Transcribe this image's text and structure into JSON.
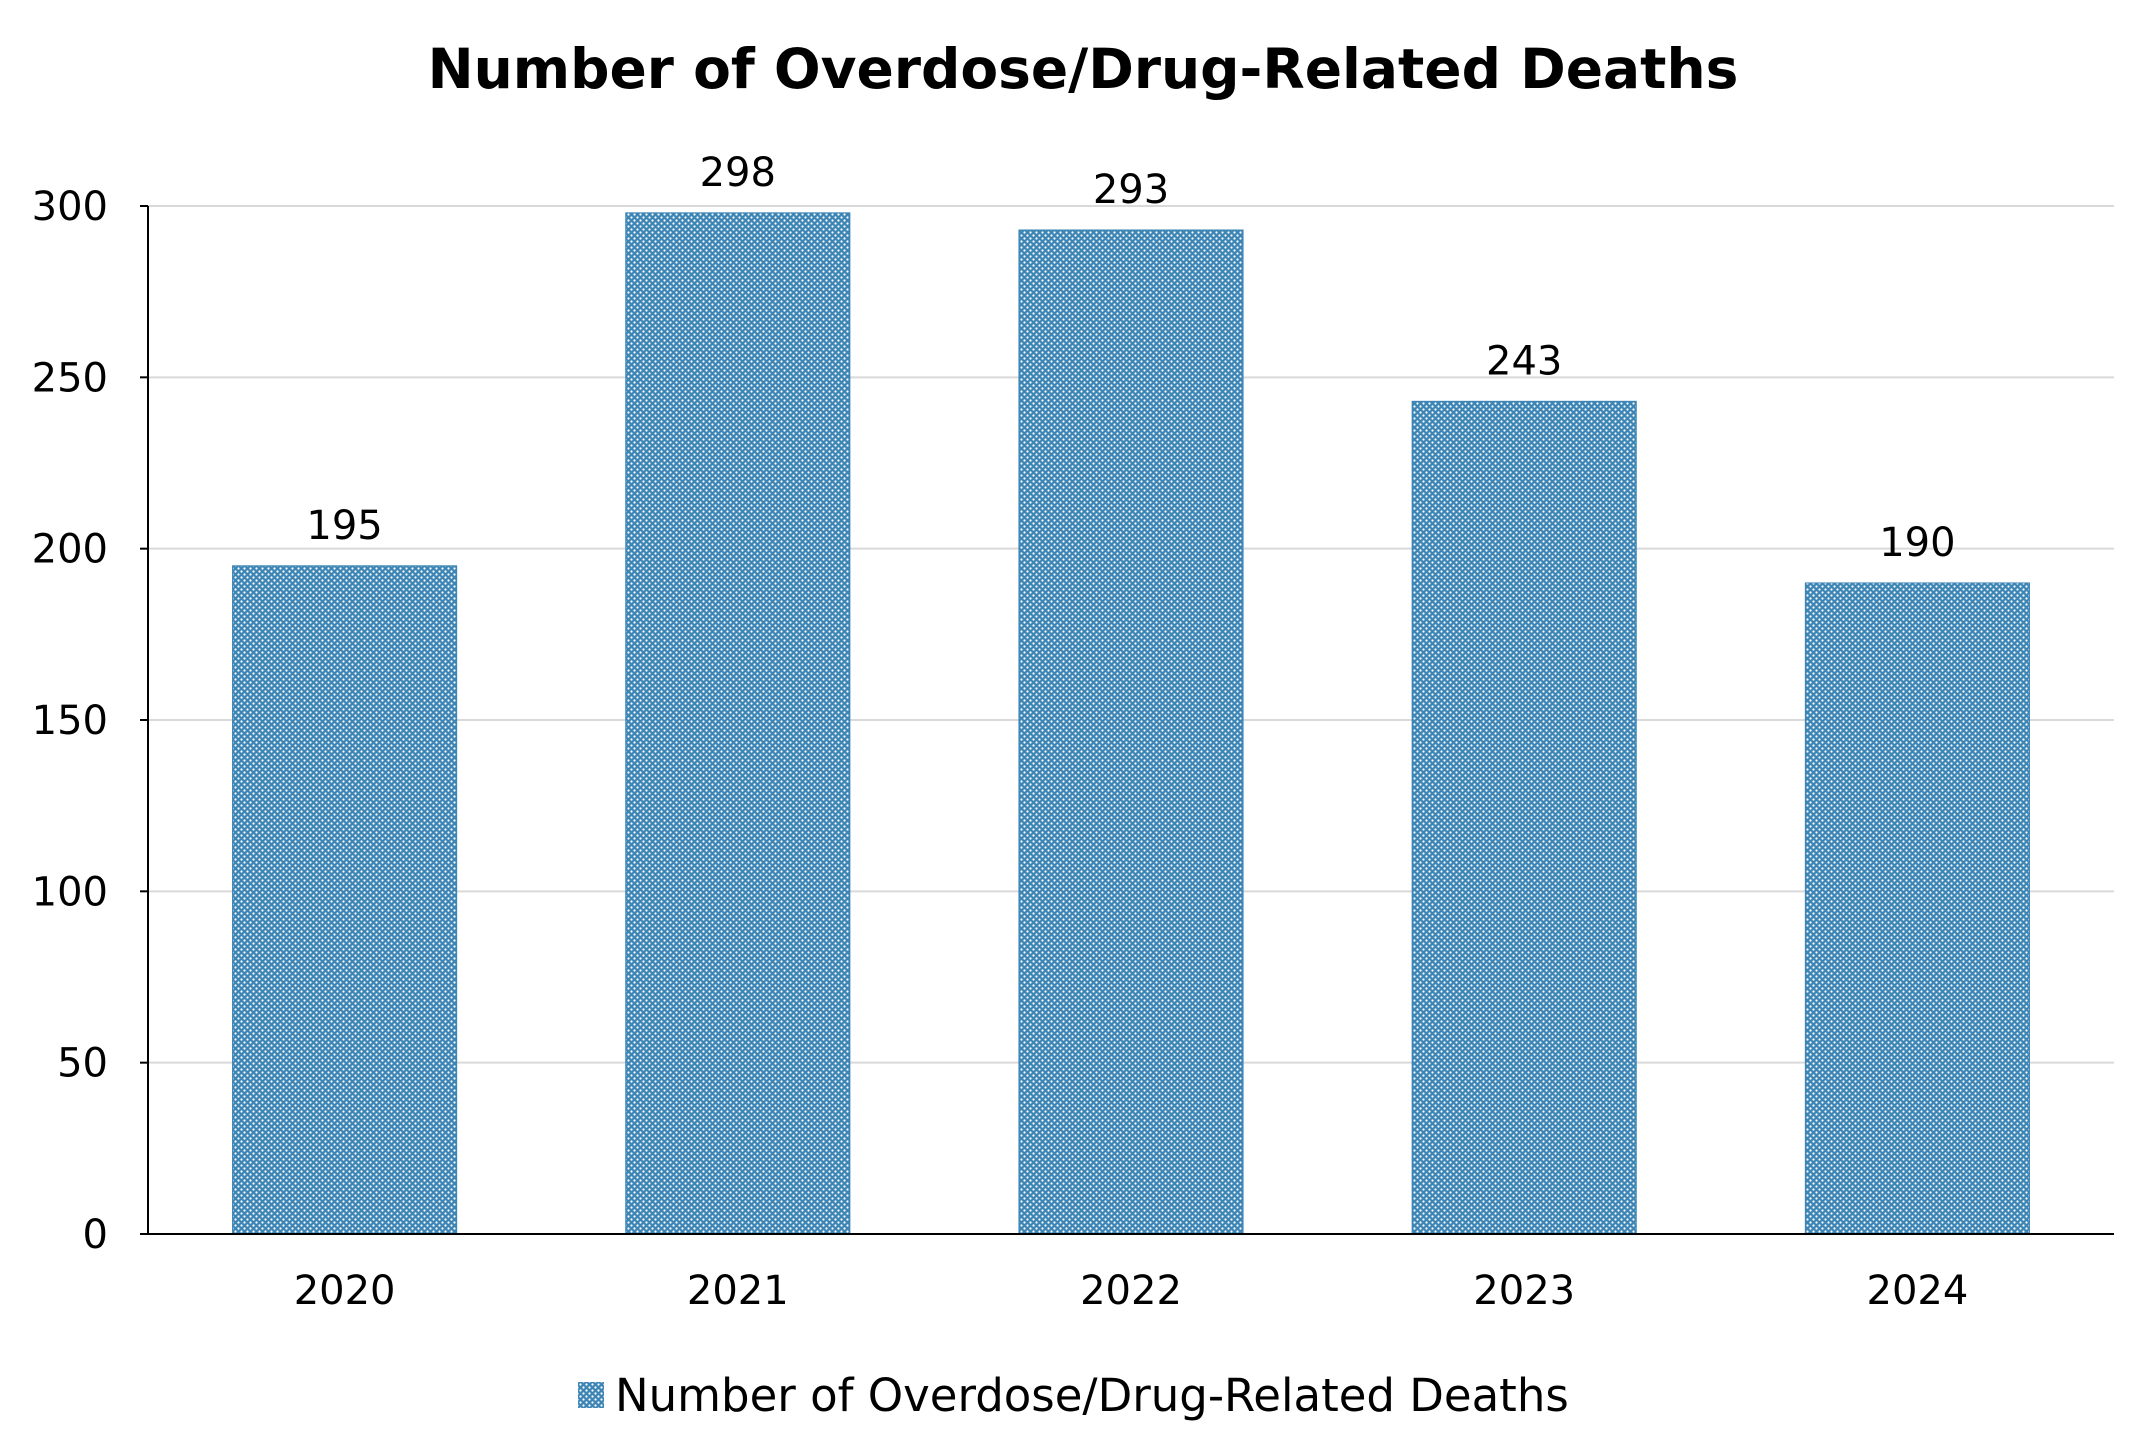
{
  "chart_data": {
    "type": "bar",
    "title": "Number of Overdose/Drug-Related Deaths",
    "categories": [
      "2020",
      "2021",
      "2022",
      "2023",
      "2024"
    ],
    "series": [
      {
        "name": "Number of Overdose/Drug-Related Deaths",
        "values": [
          195,
          298,
          293,
          243,
          190
        ],
        "color": "#3d85b5"
      }
    ],
    "xlabel": "",
    "ylabel": "",
    "ylim": [
      0,
      300
    ],
    "yticks": [
      "0",
      "50",
      "100",
      "150",
      "200",
      "250",
      "300"
    ],
    "data_labels": [
      "195",
      "298",
      "293",
      "243",
      "190"
    ],
    "grid": true,
    "legend_position": "bottom-center",
    "bar_pattern": "dotted",
    "pattern_foreground": "#ffffff"
  }
}
